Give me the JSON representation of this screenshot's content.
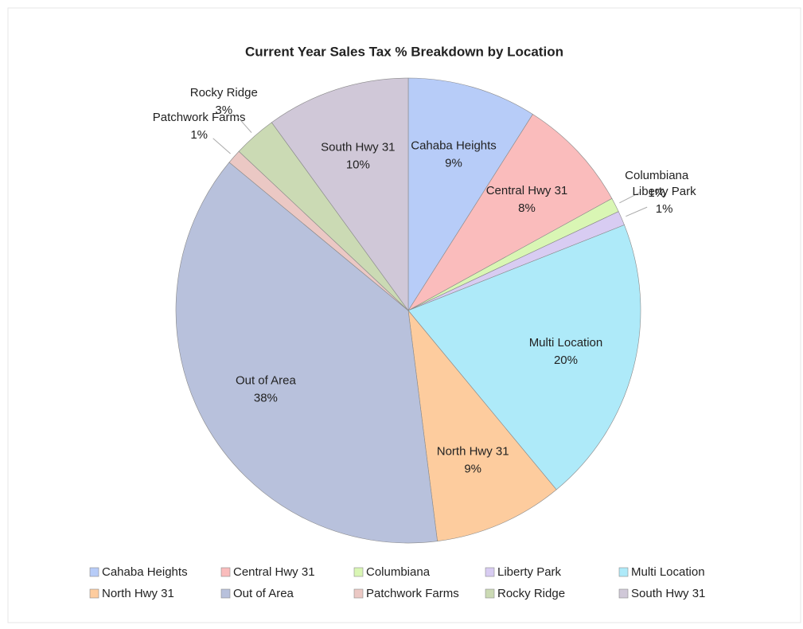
{
  "chart_data": {
    "type": "pie",
    "title": "Current Year Sales Tax % Breakdown by Location",
    "categories": [
      "Cahaba Heights",
      "Central Hwy 31",
      "Columbiana",
      "Liberty Park",
      "Multi Location",
      "North Hwy 31",
      "Out of Area",
      "Patchwork Farms",
      "Rocky Ridge",
      "South Hwy 31"
    ],
    "values": [
      9,
      8,
      1,
      1,
      20,
      9,
      38,
      1,
      3,
      10
    ],
    "value_labels": [
      "9%",
      "8%",
      "1%",
      "1%",
      "20%",
      "9%",
      "38%",
      "1%",
      "3%",
      "10%"
    ],
    "colors": [
      "#b7ccf8",
      "#fabcbc",
      "#d9f6b4",
      "#d8ccf2",
      "#aeeaf9",
      "#fdcc9e",
      "#b8c1dc",
      "#ebc8c4",
      "#cbdab4",
      "#d0c8d8"
    ],
    "legend": "bottom"
  }
}
